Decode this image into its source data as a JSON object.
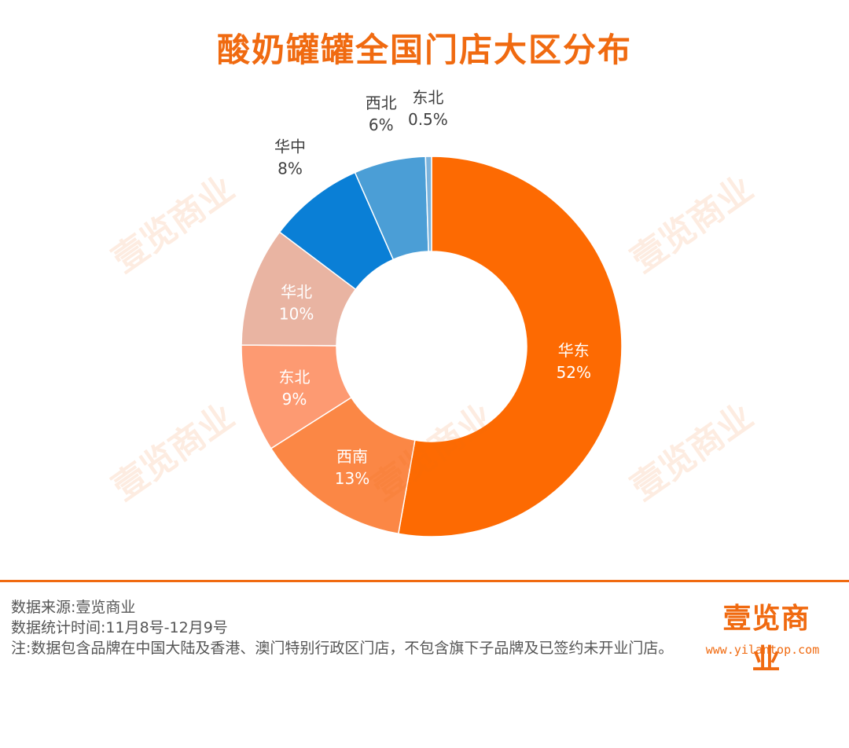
{
  "title": "酸奶罐罐全国门店大区分布",
  "watermark_text": "壹览商业",
  "chart_data": {
    "type": "pie",
    "title": "酸奶罐罐全国门店大区分布",
    "donut": true,
    "slices": [
      {
        "label": "华东",
        "value": 52,
        "value_label": "52%",
        "color": "#fd6a02",
        "label_color": "#ffffff"
      },
      {
        "label": "西南",
        "value": 13,
        "value_label": "13%",
        "color": "#fb8745",
        "label_color": "#ffffff"
      },
      {
        "label": "东北",
        "value": 9,
        "value_label": "9%",
        "color": "#fd9a72",
        "label_color": "#ffffff"
      },
      {
        "label": "华北",
        "value": 10,
        "value_label": "10%",
        "color": "#e9b4a2",
        "label_color": "#ffffff"
      },
      {
        "label": "华中",
        "value": 8,
        "value_label": "8%",
        "color": "#0a7fd6",
        "label_color": "#ffffff"
      },
      {
        "label": "西北",
        "value": 6,
        "value_label": "6%",
        "color": "#4b9ed6",
        "label_color": "#404040"
      },
      {
        "label": "东北",
        "value": 0.5,
        "value_label": "0.5%",
        "color": "#7bb3dc",
        "label_color": "#404040"
      }
    ]
  },
  "footer": {
    "source": "数据来源:壹览商业",
    "period": "数据统计时间:11月8号-12月9号",
    "note": "注:数据包含品牌在中国大陆及香港、澳门特别行政区门店，不包含旗下子品牌及已签约未开业门店。"
  },
  "brand": {
    "logo_text": "壹览商业",
    "url": "www.yilantop.com"
  },
  "colors": {
    "accent": "#f06a10"
  }
}
